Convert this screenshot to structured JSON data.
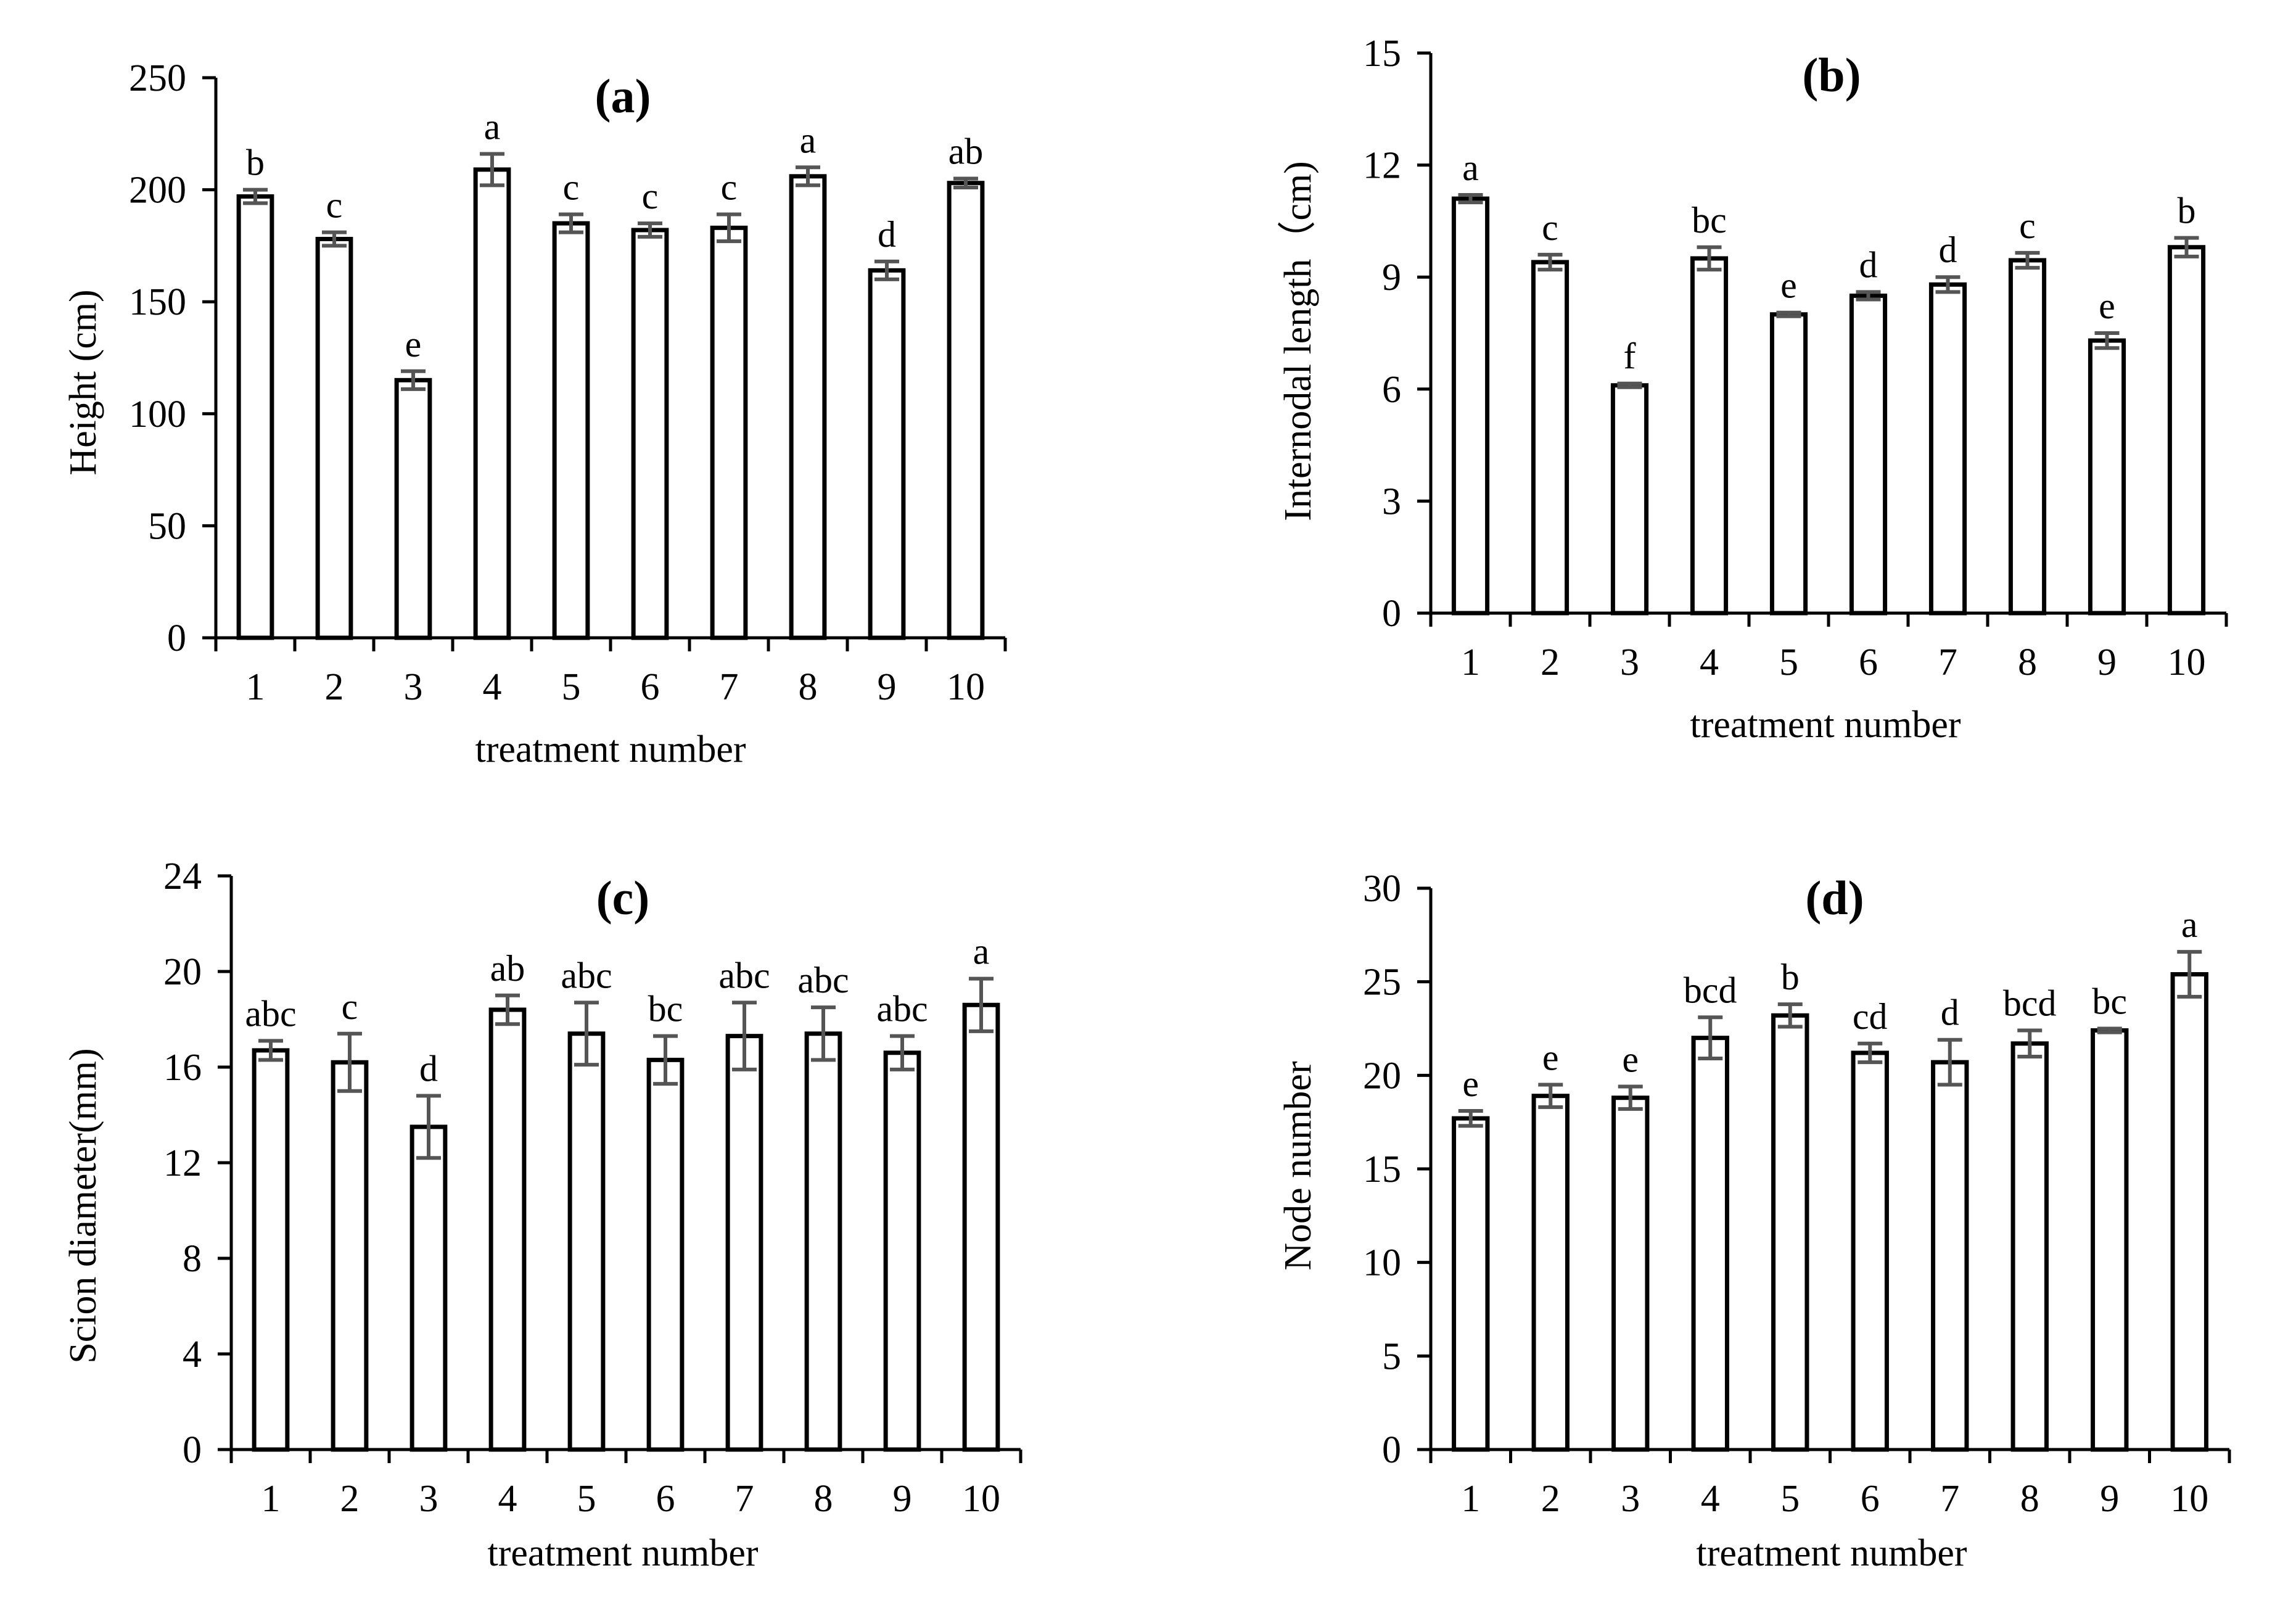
{
  "chart_data": [
    {
      "type": "bar",
      "title": "(a)",
      "xlabel": "treatment number",
      "ylabel": "Height (cm)",
      "ylim": [
        0,
        250
      ],
      "yticks": [
        0,
        50,
        100,
        150,
        200,
        250
      ],
      "categories": [
        "1",
        "2",
        "3",
        "4",
        "5",
        "6",
        "7",
        "8",
        "9",
        "10"
      ],
      "values": [
        197,
        178,
        115,
        209,
        185,
        182,
        183,
        206,
        164,
        203
      ],
      "errors": [
        3,
        3,
        4,
        7,
        4,
        3,
        6,
        4,
        4,
        2
      ],
      "letters": [
        "b",
        "c",
        "e",
        "a",
        "c",
        "c",
        "c",
        "a",
        "d",
        "ab"
      ],
      "colors": {
        "bar_fill": "#ffffff",
        "bar_stroke": "#000000",
        "error_bar": "#555555"
      }
    },
    {
      "type": "bar",
      "title": "(b)",
      "xlabel": "treatment number",
      "ylabel": "Internodal length（cm)",
      "ylim": [
        0,
        15
      ],
      "yticks": [
        0,
        3,
        6,
        9,
        12,
        15
      ],
      "categories": [
        "1",
        "2",
        "3",
        "4",
        "5",
        "6",
        "7",
        "8",
        "9",
        "10"
      ],
      "values": [
        11.1,
        9.4,
        6.1,
        9.5,
        8.0,
        8.5,
        8.8,
        9.45,
        7.3,
        9.8
      ],
      "errors": [
        0.1,
        0.2,
        0.05,
        0.3,
        0.05,
        0.1,
        0.2,
        0.2,
        0.2,
        0.25
      ],
      "letters": [
        "a",
        "c",
        "f",
        "bc",
        "e",
        "d",
        "d",
        "c",
        "e",
        "b"
      ],
      "colors": {
        "bar_fill": "#ffffff",
        "bar_stroke": "#000000",
        "error_bar": "#555555"
      }
    },
    {
      "type": "bar",
      "title": "(c)",
      "xlabel": "treatment number",
      "ylabel": "Scion diameter(mm)",
      "ylim": [
        0,
        24
      ],
      "yticks": [
        0,
        4,
        8,
        12,
        16,
        20,
        24
      ],
      "categories": [
        "1",
        "2",
        "3",
        "4",
        "5",
        "6",
        "7",
        "8",
        "9",
        "10"
      ],
      "values": [
        16.7,
        16.2,
        13.5,
        18.4,
        17.4,
        16.3,
        17.3,
        17.4,
        16.6,
        18.6
      ],
      "errors": [
        0.4,
        1.2,
        1.3,
        0.6,
        1.3,
        1.0,
        1.4,
        1.1,
        0.7,
        1.1
      ],
      "letters": [
        "abc",
        "c",
        "d",
        "ab",
        "abc",
        "bc",
        "abc",
        "abc",
        "abc",
        "a"
      ],
      "colors": {
        "bar_fill": "#ffffff",
        "bar_stroke": "#000000",
        "error_bar": "#555555"
      }
    },
    {
      "type": "bar",
      "title": "(d)",
      "xlabel": "treatment number",
      "ylabel": "Node number",
      "ylim": [
        0,
        30
      ],
      "yticks": [
        0,
        5,
        10,
        15,
        20,
        25,
        30
      ],
      "categories": [
        "1",
        "2",
        "3",
        "4",
        "5",
        "6",
        "7",
        "8",
        "9",
        "10"
      ],
      "values": [
        17.7,
        18.9,
        18.8,
        22.0,
        23.2,
        21.2,
        20.7,
        21.7,
        22.4,
        25.4
      ],
      "errors": [
        0.4,
        0.6,
        0.6,
        1.1,
        0.6,
        0.5,
        1.2,
        0.7,
        0.1,
        1.2
      ],
      "letters": [
        "e",
        "e",
        "e",
        "bcd",
        "b",
        "cd",
        "d",
        "bcd",
        "bc",
        "a"
      ],
      "colors": {
        "bar_fill": "#ffffff",
        "bar_stroke": "#000000",
        "error_bar": "#555555"
      }
    }
  ]
}
